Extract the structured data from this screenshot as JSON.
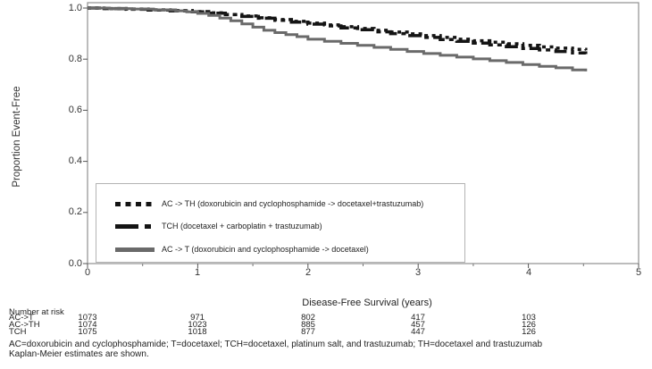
{
  "chart_data": {
    "type": "line",
    "subtype": "kaplan-meier-step",
    "title": "",
    "xlabel": "Disease-Free Survival (years)",
    "ylabel": "Proportion Event-Free",
    "xlim": [
      0,
      5
    ],
    "ylim": [
      0,
      1
    ],
    "grid": false,
    "legend_position": "inside-lower-left",
    "x_tick_labels": [
      "0",
      "1",
      "2",
      "3",
      "4",
      "5"
    ],
    "x_ticks": [
      0,
      1,
      2,
      3,
      4,
      5
    ],
    "x_minor_ticks": [
      0.5,
      1.5,
      2.5,
      3.5,
      4.5
    ],
    "y_tick_labels": [
      "1.0",
      "0.8",
      "0.6",
      "0.4",
      "0.2",
      "0.0"
    ],
    "y_ticks": [
      1.0,
      0.8,
      0.6,
      0.4,
      0.2,
      0.0
    ],
    "frame_color": "#8f8f8f",
    "series": [
      {
        "name": "AC->TH",
        "label": "AC -> TH (doxorubicin and cyclophosphamide -> docetaxel+trastuzumab)",
        "color": "#141414",
        "style": "dotted",
        "x": [
          0,
          0.15,
          0.35,
          0.55,
          0.75,
          0.95,
          1.1,
          1.25,
          1.4,
          1.55,
          1.7,
          1.85,
          2.0,
          2.15,
          2.3,
          2.45,
          2.6,
          2.75,
          2.9,
          3.05,
          3.2,
          3.35,
          3.5,
          3.65,
          3.8,
          3.95,
          4.1,
          4.25,
          4.4,
          4.52
        ],
        "y": [
          1.0,
          0.998,
          0.996,
          0.993,
          0.99,
          0.986,
          0.981,
          0.975,
          0.969,
          0.962,
          0.955,
          0.948,
          0.941,
          0.934,
          0.927,
          0.92,
          0.913,
          0.906,
          0.899,
          0.892,
          0.885,
          0.878,
          0.872,
          0.866,
          0.86,
          0.854,
          0.848,
          0.843,
          0.838,
          0.835
        ]
      },
      {
        "name": "TCH",
        "label": "TCH (docetaxel + carboplatin + trastuzumab)",
        "color": "#141414",
        "style": "dash-dot",
        "x": [
          0,
          0.15,
          0.35,
          0.55,
          0.75,
          0.95,
          1.1,
          1.25,
          1.4,
          1.55,
          1.7,
          1.85,
          2.0,
          2.15,
          2.3,
          2.45,
          2.6,
          2.75,
          2.9,
          3.05,
          3.2,
          3.35,
          3.5,
          3.65,
          3.8,
          3.95,
          4.1,
          4.25,
          4.4,
          4.52
        ],
        "y": [
          1.0,
          0.998,
          0.995,
          0.992,
          0.989,
          0.985,
          0.98,
          0.974,
          0.967,
          0.96,
          0.952,
          0.945,
          0.937,
          0.93,
          0.922,
          0.915,
          0.907,
          0.9,
          0.892,
          0.885,
          0.877,
          0.87,
          0.863,
          0.856,
          0.849,
          0.842,
          0.836,
          0.83,
          0.824,
          0.82
        ]
      },
      {
        "name": "AC->T",
        "label": "AC -> T (doxorubicin and cyclophosphamide -> docetaxel)",
        "color": "#6a6a6a",
        "style": "solid",
        "x": [
          0,
          0.2,
          0.4,
          0.6,
          0.8,
          0.9,
          1.0,
          1.1,
          1.2,
          1.3,
          1.4,
          1.5,
          1.6,
          1.7,
          1.8,
          1.9,
          2.0,
          2.15,
          2.3,
          2.45,
          2.6,
          2.75,
          2.9,
          3.05,
          3.2,
          3.35,
          3.5,
          3.65,
          3.8,
          3.95,
          4.1,
          4.25,
          4.4,
          4.52
        ],
        "y": [
          1.0,
          0.998,
          0.996,
          0.993,
          0.989,
          0.985,
          0.979,
          0.971,
          0.961,
          0.95,
          0.938,
          0.925,
          0.913,
          0.904,
          0.896,
          0.888,
          0.878,
          0.87,
          0.862,
          0.854,
          0.846,
          0.838,
          0.83,
          0.822,
          0.815,
          0.808,
          0.801,
          0.794,
          0.787,
          0.779,
          0.772,
          0.766,
          0.758,
          0.752
        ]
      }
    ]
  },
  "legend": {
    "items": [
      {
        "label": "AC -> TH (doxorubicin and cyclophosphamide -> docetaxel+trastuzumab)"
      },
      {
        "label": "TCH (docetaxel + carboplatin + trastuzumab)"
      },
      {
        "label": "AC -> T (doxorubicin and cyclophosphamide -> docetaxel)"
      }
    ]
  },
  "risk_table": {
    "title": "Number at risk",
    "rows": [
      {
        "label": "AC->T",
        "values": [
          "1073",
          "971",
          "802",
          "417",
          "103"
        ]
      },
      {
        "label": "AC->TH",
        "values": [
          "1074",
          "1023",
          "885",
          "457",
          "126"
        ]
      },
      {
        "label": "TCH",
        "values": [
          "1075",
          "1018",
          "877",
          "447",
          "126"
        ]
      }
    ]
  },
  "footnotes": [
    "AC=doxorubicin and cyclophosphamide; T=docetaxel; TCH=docetaxel, platinum salt, and trastuzumab; TH=docetaxel and trastuzumab",
    "Kaplan-Meier estimates are shown."
  ]
}
